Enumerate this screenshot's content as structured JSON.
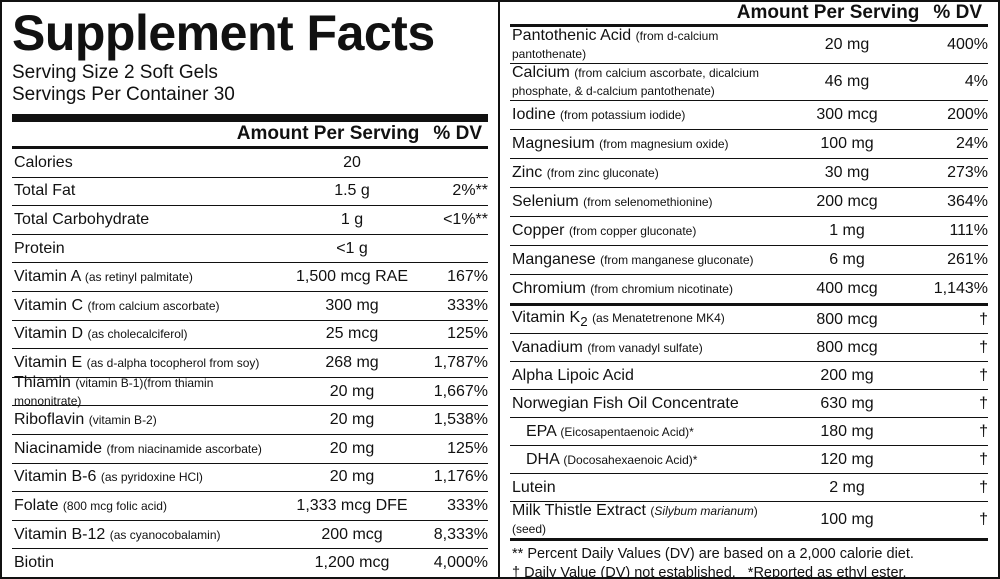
{
  "title": "Supplement Facts",
  "serving_size": "Serving Size 2 Soft Gels",
  "servings_per_container": "Servings Per Container 30",
  "left": {
    "header_amount": "Amount Per Serving",
    "header_dv": "% DV",
    "rows": [
      {
        "name": "Calories",
        "amount": "20"
      },
      {
        "name": "Total Fat",
        "amount": "1.5 g",
        "dv": "2%**"
      },
      {
        "name": "Total Carbohydrate",
        "amount": "1 g",
        "dv": "<1%**"
      },
      {
        "name": "Protein",
        "amount": "<1 g"
      },
      {
        "name": "Vitamin A",
        "note": "(as retinyl palmitate)",
        "amount": "1,500 mcg RAE",
        "dv": "167%"
      },
      {
        "name": "Vitamin C",
        "note": "(from calcium ascorbate)",
        "amount": "300 mg",
        "dv": "333%"
      },
      {
        "name": "Vitamin D",
        "note": "(as cholecalciferol)",
        "amount": "25 mcg",
        "dv": "125%"
      },
      {
        "name": "Vitamin E",
        "note": "(as d-alpha tocopherol from soy)",
        "amount": "268 mg",
        "dv": "1,787%"
      },
      {
        "name": "Thiamin",
        "note": "(vitamin B-1)(from thiamin mononitrate)",
        "amount": "20 mg",
        "dv": "1,667%"
      },
      {
        "name": "Riboflavin",
        "note": "(vitamin B-2)",
        "amount": "20 mg",
        "dv": "1,538%"
      },
      {
        "name": "Niacinamide",
        "note": "(from niacinamide ascorbate)",
        "amount": "20 mg",
        "dv": "125%"
      },
      {
        "name": "Vitamin B-6",
        "note": "(as pyridoxine HCl)",
        "amount": "20 mg",
        "dv": "1,176%"
      },
      {
        "name": "Folate",
        "note": "(800 mcg folic acid)",
        "amount": "1,333 mcg DFE",
        "dv": "333%"
      },
      {
        "name": "Vitamin B-12",
        "note": "(as cyanocobalamin)",
        "amount": "200 mcg",
        "dv": "8,333%"
      },
      {
        "name": "Biotin",
        "amount": "1,200 mcg",
        "dv": "4,000%"
      }
    ]
  },
  "right": {
    "header_amount": "Amount Per Serving",
    "header_dv": "% DV",
    "groups": [
      [
        {
          "name": "Pantothenic Acid",
          "note": "(from d-calcium pantothenate)",
          "amount": "20 mg",
          "dv": "400%"
        },
        {
          "name": "Calcium",
          "note": "(from calcium ascorbate, dicalcium phosphate, & d-calcium pantothenate)",
          "amount": "46 mg",
          "dv": "4%"
        },
        {
          "name": "Iodine",
          "note": "(from potassium iodide)",
          "amount": "300 mcg",
          "dv": "200%"
        },
        {
          "name": "Magnesium",
          "note": "(from magnesium oxide)",
          "amount": "100 mg",
          "dv": "24%"
        },
        {
          "name": "Zinc",
          "note": "(from zinc gluconate)",
          "amount": "30 mg",
          "dv": "273%"
        },
        {
          "name": "Selenium",
          "note": "(from selenomethionine)",
          "amount": "200 mcg",
          "dv": "364%"
        },
        {
          "name": "Copper",
          "note": "(from copper gluconate)",
          "amount": "1 mg",
          "dv": "111%"
        },
        {
          "name": "Manganese",
          "note": "(from manganese gluconate)",
          "amount": "6 mg",
          "dv": "261%"
        },
        {
          "name": "Chromium",
          "note": "(from chromium nicotinate)",
          "amount": "400 mcg",
          "dv": "1,143%"
        }
      ],
      [
        {
          "name": "Vitamin K",
          "sub": "2",
          "note": "(as Menatetrenone MK4)",
          "amount": "800 mcg",
          "dv": "†"
        },
        {
          "name": "Vanadium",
          "note": "(from vanadyl sulfate)",
          "amount": "800 mcg",
          "dv": "†"
        },
        {
          "name": "Alpha Lipoic Acid",
          "amount": "200 mg",
          "dv": "†"
        },
        {
          "name": "Norwegian Fish Oil Concentrate",
          "amount": "630 mg",
          "dv": "†"
        },
        {
          "name": "EPA",
          "note": "(Eicosapentaenoic Acid)*",
          "amount": "180 mg",
          "dv": "†",
          "indent": true
        },
        {
          "name": "DHA",
          "note": "(Docosahexaenoic Acid)*",
          "amount": "120 mg",
          "dv": "†",
          "indent": true
        },
        {
          "name": "Lutein",
          "amount": "2 mg",
          "dv": "†"
        },
        {
          "name": "Milk Thistle Extract",
          "note": "(",
          "note_italic": "Silybum marianum",
          "note_end": ")(seed)",
          "amount": "100 mg",
          "dv": "†"
        }
      ]
    ]
  },
  "footnotes": [
    "** Percent Daily Values (DV) are based on a 2,000 calorie diet.",
    "† Daily Value (DV) not established.",
    "*Reported as ethyl ester."
  ]
}
